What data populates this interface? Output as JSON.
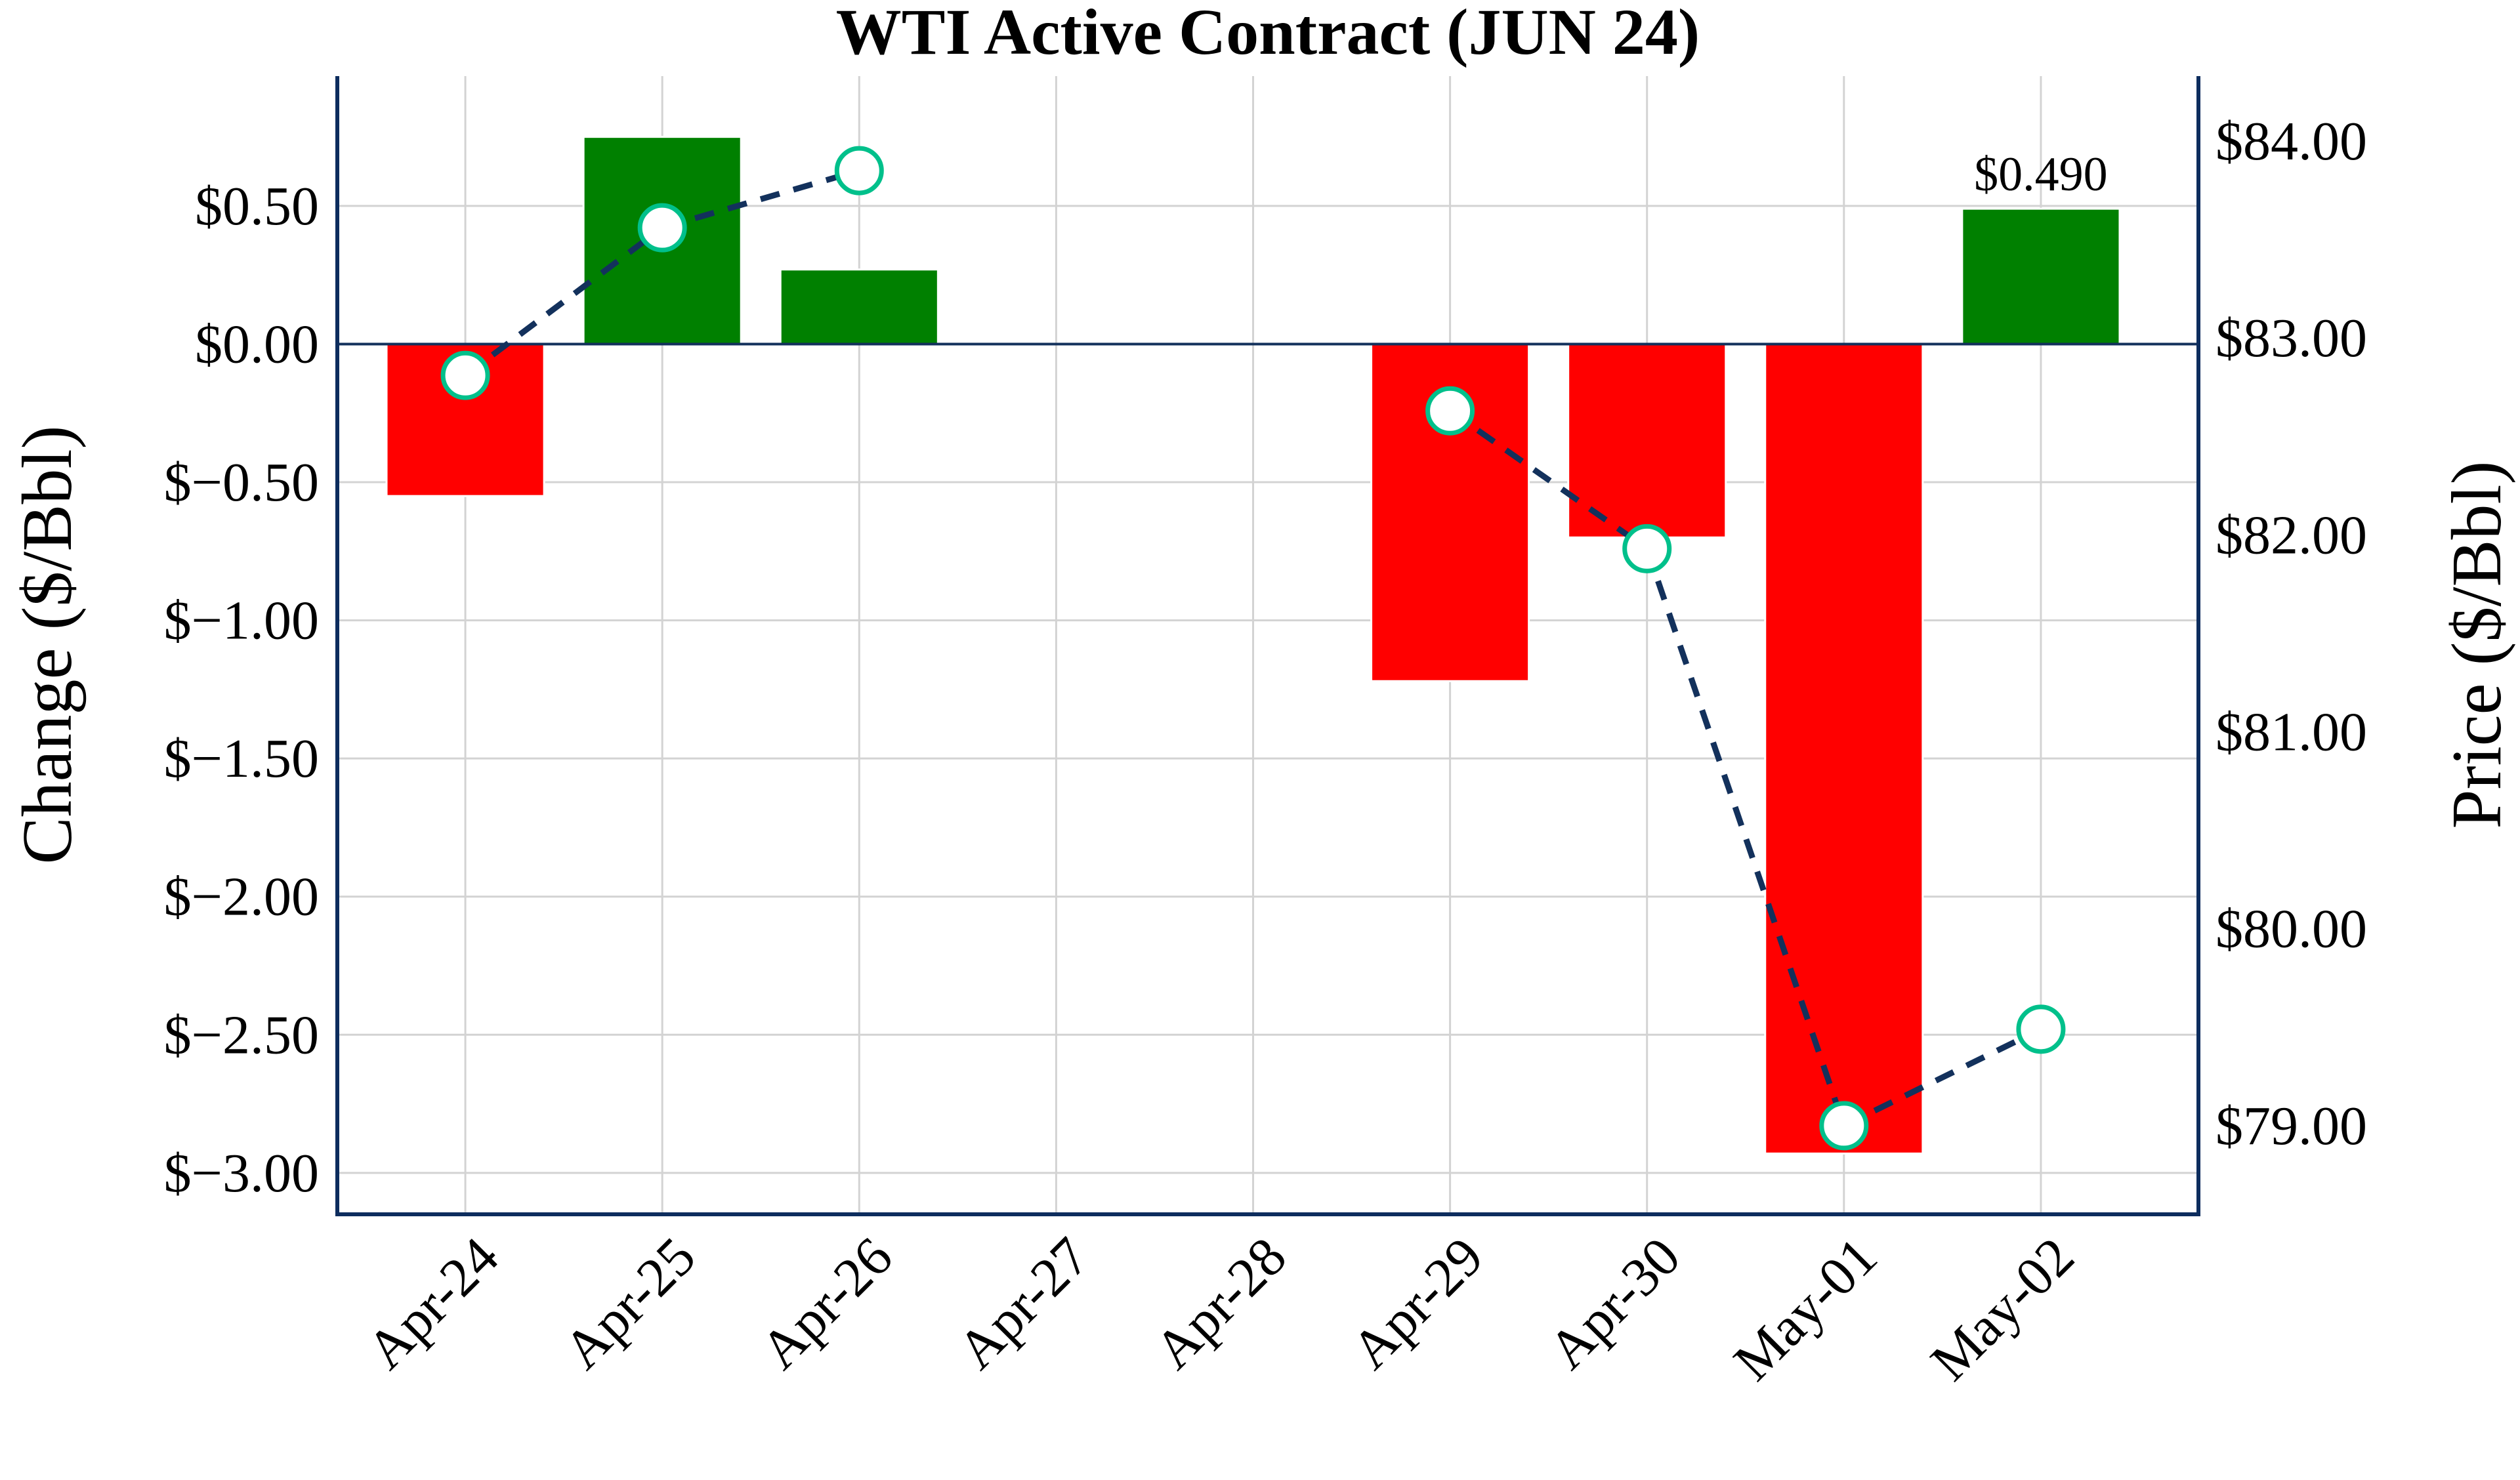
{
  "chart_data": {
    "type": "bar",
    "title": "WTI Active Contract (JUN 24)",
    "xlabel": "",
    "ylabel": "Change ($/Bbl)",
    "y2label": "Price ($/Bbl)",
    "categories": [
      "Apr-24",
      "Apr-25",
      "Apr-26",
      "Apr-27",
      "Apr-28",
      "Apr-29",
      "Apr-30",
      "May-01",
      "May-02"
    ],
    "series": [
      {
        "name": "Change",
        "type": "bar",
        "axis": "left",
        "values": [
          -0.55,
          0.75,
          0.27,
          null,
          null,
          -1.22,
          -0.7,
          -2.93,
          0.49
        ]
      },
      {
        "name": "Price",
        "type": "line",
        "axis": "right",
        "style": "dashed",
        "markers": "circle",
        "values": [
          82.81,
          83.56,
          83.85,
          null,
          null,
          82.63,
          81.93,
          79.0,
          79.49
        ]
      }
    ],
    "annotations": [
      {
        "category": "May-02",
        "text": "$0.490"
      }
    ],
    "ylim": [
      -3.15,
      0.97
    ],
    "y2lim": [
      78.55,
      84.33
    ],
    "yticks": [
      0.5,
      0.0,
      -0.5,
      -1.0,
      -1.5,
      -2.0,
      -2.5,
      -3.0
    ],
    "ytick_labels": [
      "$0.50",
      "$0.00",
      "$−0.50",
      "$−1.00",
      "$−1.50",
      "$−2.00",
      "$−2.50",
      "$−3.00"
    ],
    "y2ticks": [
      84,
      83,
      82,
      81,
      80,
      79
    ],
    "y2tick_labels": [
      "$84.00",
      "$83.00",
      "$82.00",
      "$81.00",
      "$80.00",
      "$79.00"
    ],
    "grid": true,
    "colors": {
      "positive": "#008000",
      "negative": "#ff0000",
      "line": "#13315c",
      "marker_edge": "#00c08b",
      "marker_fill": "#ffffff",
      "spine": "#0d2d5e",
      "grid": "#d3d3d3",
      "zero_line": "#13315c"
    }
  }
}
